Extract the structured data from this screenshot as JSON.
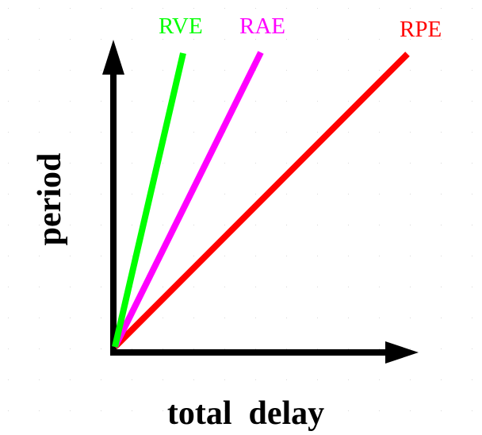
{
  "diagram": {
    "x_axis_label": "total  delay",
    "y_axis_label": "period",
    "lines": [
      {
        "name": "RVE",
        "color": "#00ff00"
      },
      {
        "name": "RAE",
        "color": "#ff00ff"
      },
      {
        "name": "RPE",
        "color": "#ff0000"
      }
    ],
    "axis_color": "#000000",
    "grid_dot_color": "#d8d8d8"
  }
}
